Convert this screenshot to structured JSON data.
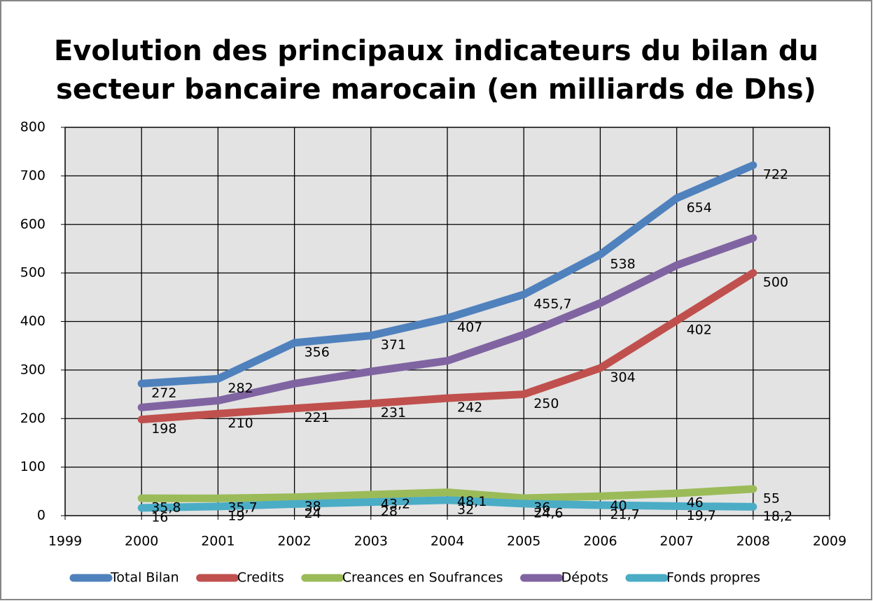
{
  "chart_data": {
    "type": "line",
    "title": [
      "Evolution des principaux indicateurs du bilan du",
      "secteur bancaire marocain (en milliards de Dhs)"
    ],
    "x": [
      2000,
      2001,
      2002,
      2003,
      2004,
      2005,
      2006,
      2007,
      2008
    ],
    "xlim": [
      1999,
      2009
    ],
    "xticks": [
      1999,
      2000,
      2001,
      2002,
      2003,
      2004,
      2005,
      2006,
      2007,
      2008,
      2009
    ],
    "ylim": [
      0,
      800
    ],
    "yticks": [
      0,
      100,
      200,
      300,
      400,
      500,
      600,
      700,
      800
    ],
    "grid": true,
    "legend": "bottom",
    "series": [
      {
        "name": "Total Bilan",
        "color": "#4f81bd",
        "values": [
          272,
          282,
          356,
          371,
          407,
          455.7,
          538,
          654,
          722
        ],
        "value_labels": [
          "272",
          "282",
          "356",
          "371",
          "407",
          "455,7",
          "538",
          "654",
          "722"
        ]
      },
      {
        "name": "Credits",
        "color": "#c0504d",
        "values": [
          198,
          210,
          221,
          231,
          242,
          250,
          304,
          402,
          500
        ],
        "value_labels": [
          "198",
          "210",
          "221",
          "231",
          "242",
          "250",
          "304",
          "402",
          "500"
        ]
      },
      {
        "name": "Creances en Soufrances",
        "color": "#9bbb59",
        "values": [
          35.8,
          35.7,
          38,
          43.2,
          48.1,
          36,
          40,
          46,
          55
        ],
        "value_labels": [
          "35,8",
          "35,7",
          "38",
          "43,2",
          "48,1",
          "36",
          "40",
          "46",
          "55"
        ]
      },
      {
        "name": "Dépots",
        "color": "#8064a2",
        "values": [
          223,
          237,
          272,
          297,
          319,
          373,
          438,
          516,
          572
        ]
      },
      {
        "name": "Fonds propres",
        "color": "#4bacc6",
        "values": [
          16,
          19,
          24,
          28,
          32,
          24.6,
          21.7,
          19.7,
          18.2
        ],
        "value_labels": [
          "16",
          "19",
          "24",
          "28",
          "32",
          "24,6",
          "21,7",
          "19,7",
          "18,2"
        ]
      }
    ]
  }
}
